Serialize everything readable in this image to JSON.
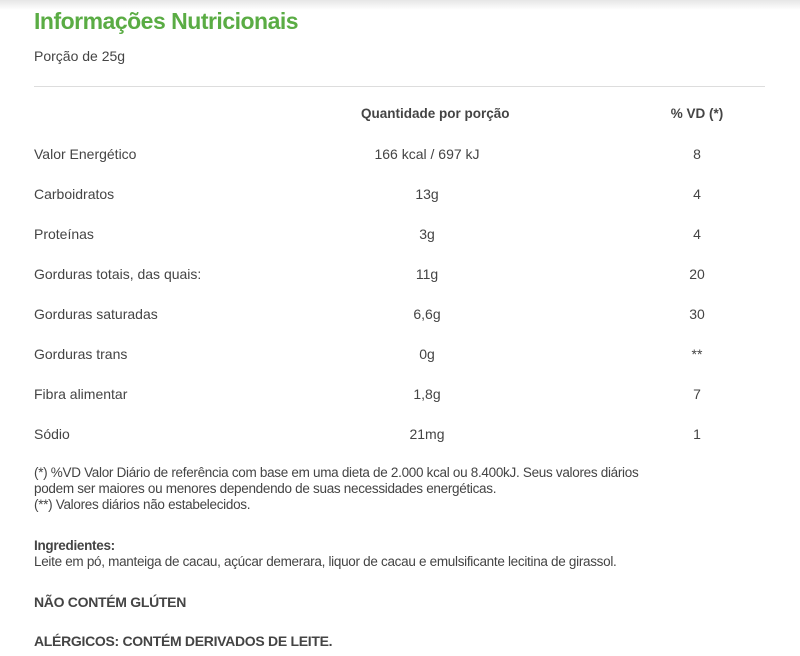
{
  "title": "Informações Nutricionais",
  "portion": "Porção de 25g",
  "table": {
    "headers": [
      "",
      "Quantidade por porção",
      "% VD (*)"
    ],
    "rows": [
      [
        "Valor Energético",
        "166 kcal  /  697 kJ",
        "8"
      ],
      [
        "Carboidratos",
        "13g",
        "4"
      ],
      [
        "Proteínas",
        "3g",
        "4"
      ],
      [
        "Gorduras totais, das quais:",
        "11g",
        "20"
      ],
      [
        "Gorduras saturadas",
        "6,6g",
        "30"
      ],
      [
        "Gorduras trans",
        "0g",
        "**"
      ],
      [
        "Fibra alimentar",
        "1,8g",
        "7"
      ],
      [
        "Sódio",
        "21mg",
        "1"
      ]
    ]
  },
  "footnotes": [
    "(*) %VD Valor Diário de referência com base em uma dieta de 2.000 kcal ou 8.400kJ. Seus valores diários",
    "podem ser maiores ou menores dependendo de suas necessidades energéticas.",
    "(**) Valores diários não estabelecidos."
  ],
  "ingredients": {
    "label": "Ingredientes:",
    "text": "Leite em pó, manteiga de cacau, açúcar demerara, liquor de cacau e emulsificante lecitina de girassol."
  },
  "gluten": "NÃO CONTÉM GLÚTEN",
  "allergens": "ALÉRGICOS: CONTÉM DERIVADOS DE LEITE."
}
